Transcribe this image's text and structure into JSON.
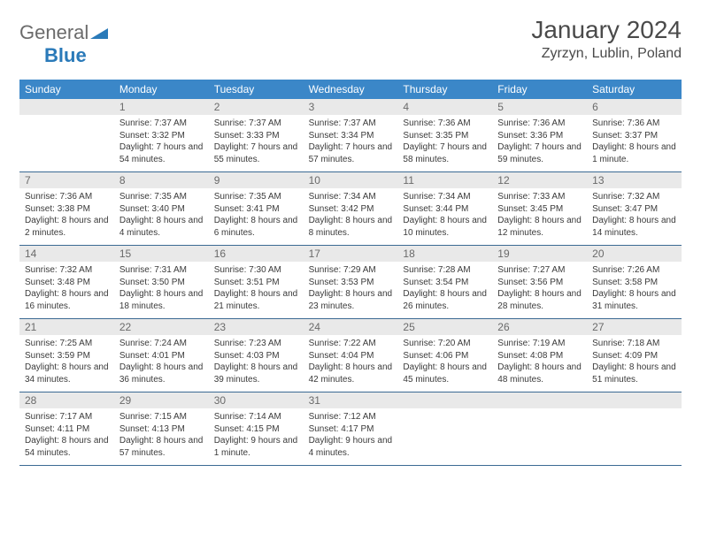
{
  "logo": {
    "general": "General",
    "blue": "Blue"
  },
  "header": {
    "month_title": "January 2024",
    "location": "Zyrzyn, Lublin, Poland"
  },
  "colors": {
    "header_bg": "#3b87c8",
    "header_text": "#ffffff",
    "daynum_bg": "#e9e9e9",
    "daynum_text": "#6a6a6a",
    "body_text": "#3a3a3a",
    "rule": "#3b6a93",
    "logo_general": "#6b6b6b",
    "logo_blue": "#2a7ab9"
  },
  "dow": [
    "Sunday",
    "Monday",
    "Tuesday",
    "Wednesday",
    "Thursday",
    "Friday",
    "Saturday"
  ],
  "weeks": [
    [
      {
        "num": "",
        "sunrise": "",
        "sunset": "",
        "daylight": ""
      },
      {
        "num": "1",
        "sunrise": "Sunrise: 7:37 AM",
        "sunset": "Sunset: 3:32 PM",
        "daylight": "Daylight: 7 hours and 54 minutes."
      },
      {
        "num": "2",
        "sunrise": "Sunrise: 7:37 AM",
        "sunset": "Sunset: 3:33 PM",
        "daylight": "Daylight: 7 hours and 55 minutes."
      },
      {
        "num": "3",
        "sunrise": "Sunrise: 7:37 AM",
        "sunset": "Sunset: 3:34 PM",
        "daylight": "Daylight: 7 hours and 57 minutes."
      },
      {
        "num": "4",
        "sunrise": "Sunrise: 7:36 AM",
        "sunset": "Sunset: 3:35 PM",
        "daylight": "Daylight: 7 hours and 58 minutes."
      },
      {
        "num": "5",
        "sunrise": "Sunrise: 7:36 AM",
        "sunset": "Sunset: 3:36 PM",
        "daylight": "Daylight: 7 hours and 59 minutes."
      },
      {
        "num": "6",
        "sunrise": "Sunrise: 7:36 AM",
        "sunset": "Sunset: 3:37 PM",
        "daylight": "Daylight: 8 hours and 1 minute."
      }
    ],
    [
      {
        "num": "7",
        "sunrise": "Sunrise: 7:36 AM",
        "sunset": "Sunset: 3:38 PM",
        "daylight": "Daylight: 8 hours and 2 minutes."
      },
      {
        "num": "8",
        "sunrise": "Sunrise: 7:35 AM",
        "sunset": "Sunset: 3:40 PM",
        "daylight": "Daylight: 8 hours and 4 minutes."
      },
      {
        "num": "9",
        "sunrise": "Sunrise: 7:35 AM",
        "sunset": "Sunset: 3:41 PM",
        "daylight": "Daylight: 8 hours and 6 minutes."
      },
      {
        "num": "10",
        "sunrise": "Sunrise: 7:34 AM",
        "sunset": "Sunset: 3:42 PM",
        "daylight": "Daylight: 8 hours and 8 minutes."
      },
      {
        "num": "11",
        "sunrise": "Sunrise: 7:34 AM",
        "sunset": "Sunset: 3:44 PM",
        "daylight": "Daylight: 8 hours and 10 minutes."
      },
      {
        "num": "12",
        "sunrise": "Sunrise: 7:33 AM",
        "sunset": "Sunset: 3:45 PM",
        "daylight": "Daylight: 8 hours and 12 minutes."
      },
      {
        "num": "13",
        "sunrise": "Sunrise: 7:32 AM",
        "sunset": "Sunset: 3:47 PM",
        "daylight": "Daylight: 8 hours and 14 minutes."
      }
    ],
    [
      {
        "num": "14",
        "sunrise": "Sunrise: 7:32 AM",
        "sunset": "Sunset: 3:48 PM",
        "daylight": "Daylight: 8 hours and 16 minutes."
      },
      {
        "num": "15",
        "sunrise": "Sunrise: 7:31 AM",
        "sunset": "Sunset: 3:50 PM",
        "daylight": "Daylight: 8 hours and 18 minutes."
      },
      {
        "num": "16",
        "sunrise": "Sunrise: 7:30 AM",
        "sunset": "Sunset: 3:51 PM",
        "daylight": "Daylight: 8 hours and 21 minutes."
      },
      {
        "num": "17",
        "sunrise": "Sunrise: 7:29 AM",
        "sunset": "Sunset: 3:53 PM",
        "daylight": "Daylight: 8 hours and 23 minutes."
      },
      {
        "num": "18",
        "sunrise": "Sunrise: 7:28 AM",
        "sunset": "Sunset: 3:54 PM",
        "daylight": "Daylight: 8 hours and 26 minutes."
      },
      {
        "num": "19",
        "sunrise": "Sunrise: 7:27 AM",
        "sunset": "Sunset: 3:56 PM",
        "daylight": "Daylight: 8 hours and 28 minutes."
      },
      {
        "num": "20",
        "sunrise": "Sunrise: 7:26 AM",
        "sunset": "Sunset: 3:58 PM",
        "daylight": "Daylight: 8 hours and 31 minutes."
      }
    ],
    [
      {
        "num": "21",
        "sunrise": "Sunrise: 7:25 AM",
        "sunset": "Sunset: 3:59 PM",
        "daylight": "Daylight: 8 hours and 34 minutes."
      },
      {
        "num": "22",
        "sunrise": "Sunrise: 7:24 AM",
        "sunset": "Sunset: 4:01 PM",
        "daylight": "Daylight: 8 hours and 36 minutes."
      },
      {
        "num": "23",
        "sunrise": "Sunrise: 7:23 AM",
        "sunset": "Sunset: 4:03 PM",
        "daylight": "Daylight: 8 hours and 39 minutes."
      },
      {
        "num": "24",
        "sunrise": "Sunrise: 7:22 AM",
        "sunset": "Sunset: 4:04 PM",
        "daylight": "Daylight: 8 hours and 42 minutes."
      },
      {
        "num": "25",
        "sunrise": "Sunrise: 7:20 AM",
        "sunset": "Sunset: 4:06 PM",
        "daylight": "Daylight: 8 hours and 45 minutes."
      },
      {
        "num": "26",
        "sunrise": "Sunrise: 7:19 AM",
        "sunset": "Sunset: 4:08 PM",
        "daylight": "Daylight: 8 hours and 48 minutes."
      },
      {
        "num": "27",
        "sunrise": "Sunrise: 7:18 AM",
        "sunset": "Sunset: 4:09 PM",
        "daylight": "Daylight: 8 hours and 51 minutes."
      }
    ],
    [
      {
        "num": "28",
        "sunrise": "Sunrise: 7:17 AM",
        "sunset": "Sunset: 4:11 PM",
        "daylight": "Daylight: 8 hours and 54 minutes."
      },
      {
        "num": "29",
        "sunrise": "Sunrise: 7:15 AM",
        "sunset": "Sunset: 4:13 PM",
        "daylight": "Daylight: 8 hours and 57 minutes."
      },
      {
        "num": "30",
        "sunrise": "Sunrise: 7:14 AM",
        "sunset": "Sunset: 4:15 PM",
        "daylight": "Daylight: 9 hours and 1 minute."
      },
      {
        "num": "31",
        "sunrise": "Sunrise: 7:12 AM",
        "sunset": "Sunset: 4:17 PM",
        "daylight": "Daylight: 9 hours and 4 minutes."
      },
      {
        "num": "",
        "sunrise": "",
        "sunset": "",
        "daylight": ""
      },
      {
        "num": "",
        "sunrise": "",
        "sunset": "",
        "daylight": ""
      },
      {
        "num": "",
        "sunrise": "",
        "sunset": "",
        "daylight": ""
      }
    ]
  ]
}
